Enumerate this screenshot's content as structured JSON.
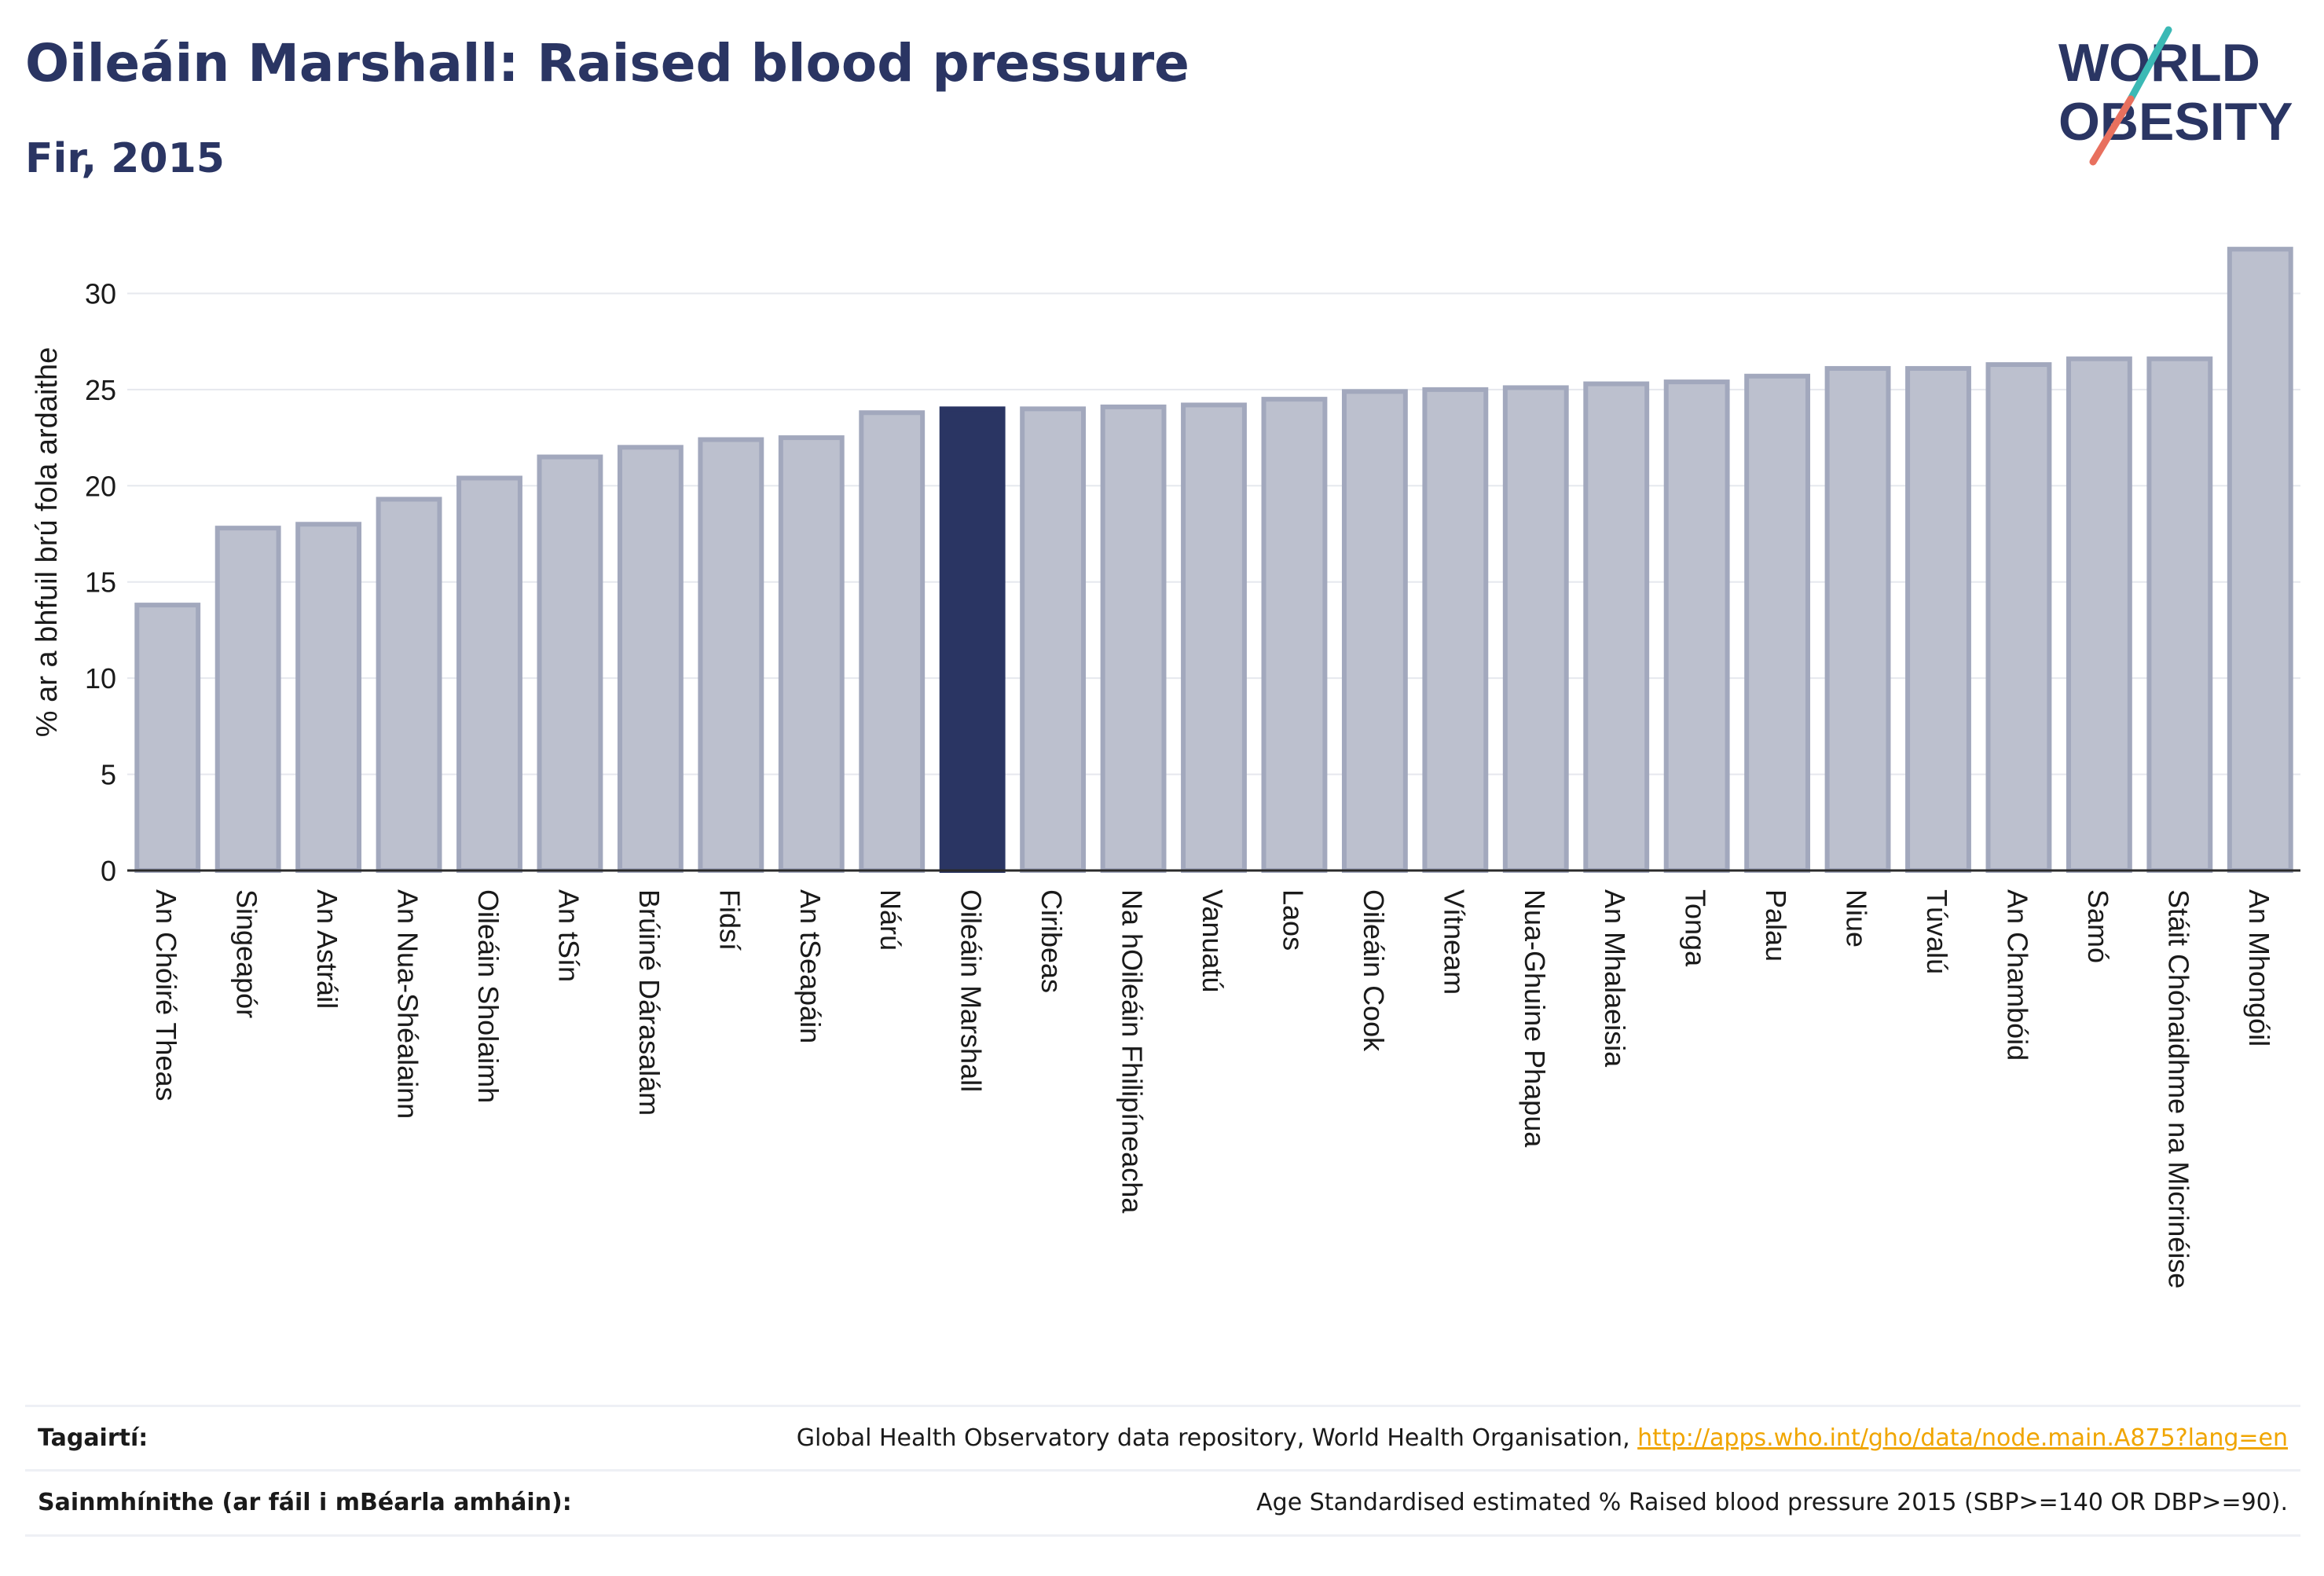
{
  "header": {
    "title": "Oileáin Marshall: Raised blood pressure",
    "subtitle": "Fir, 2015"
  },
  "logo": {
    "line1": "WORLD",
    "line2": "OBESITY"
  },
  "colors": {
    "highlight": "#2a3563",
    "bar": "#bcc0ce",
    "bar_stroke": "#a2a8bd",
    "accent_teal": "#3bb9b5",
    "accent_coral": "#e8705e",
    "link": "#f0a500"
  },
  "chart_data": {
    "type": "bar",
    "title": "Oileáin Marshall: Raised blood pressure",
    "subtitle": "Fir, 2015",
    "ylabel": "% ar a bhfuil brú fola ardaithe",
    "xlabel": "",
    "ylim": [
      0,
      33
    ],
    "yticks": [
      0,
      5,
      10,
      15,
      20,
      25,
      30
    ],
    "grid": true,
    "highlight": "Oileáin Marshall",
    "categories": [
      "An Chóiré Theas",
      "Singeapór",
      "An Astráil",
      "An Nua-Shéalainn",
      "Oileáin Sholaimh",
      "An tSín",
      "Brúiné Dárasalám",
      "Fidsí",
      "An tSeapáin",
      "Nárú",
      "Oileáin Marshall",
      "Ciribeas",
      "Na hOileáin Fhilipíneacha",
      "Vanuatú",
      "Laos",
      "Oileáin Cook",
      "Vítneam",
      "Nua-Ghuine Phapua",
      "An Mhalaeisia",
      "Tonga",
      "Palau",
      "Niue",
      "Túvalú",
      "An Chambóid",
      "Samó",
      "Stáit Chónaidhme na Micrinéise",
      "An Mhongóil"
    ],
    "values": [
      13.8,
      17.8,
      18.0,
      19.3,
      20.4,
      21.5,
      22.0,
      22.4,
      22.5,
      23.8,
      24.0,
      24.0,
      24.1,
      24.2,
      24.5,
      24.9,
      25.0,
      25.1,
      25.3,
      25.4,
      25.7,
      26.1,
      26.1,
      26.3,
      26.6,
      26.6,
      32.3
    ]
  },
  "footer": {
    "references_label": "Tagairtí:",
    "references_text": "Global Health Observatory data repository, World Health Organisation, ",
    "references_link": "http://apps.who.int/gho/data/node.main.A875?lang=en",
    "definitions_label": "Sainmhínithe (ar fáil i mBéarla amháin):",
    "definitions_text": "Age Standardised estimated % Raised blood pressure 2015 (SBP>=140 OR DBP>=90)."
  }
}
